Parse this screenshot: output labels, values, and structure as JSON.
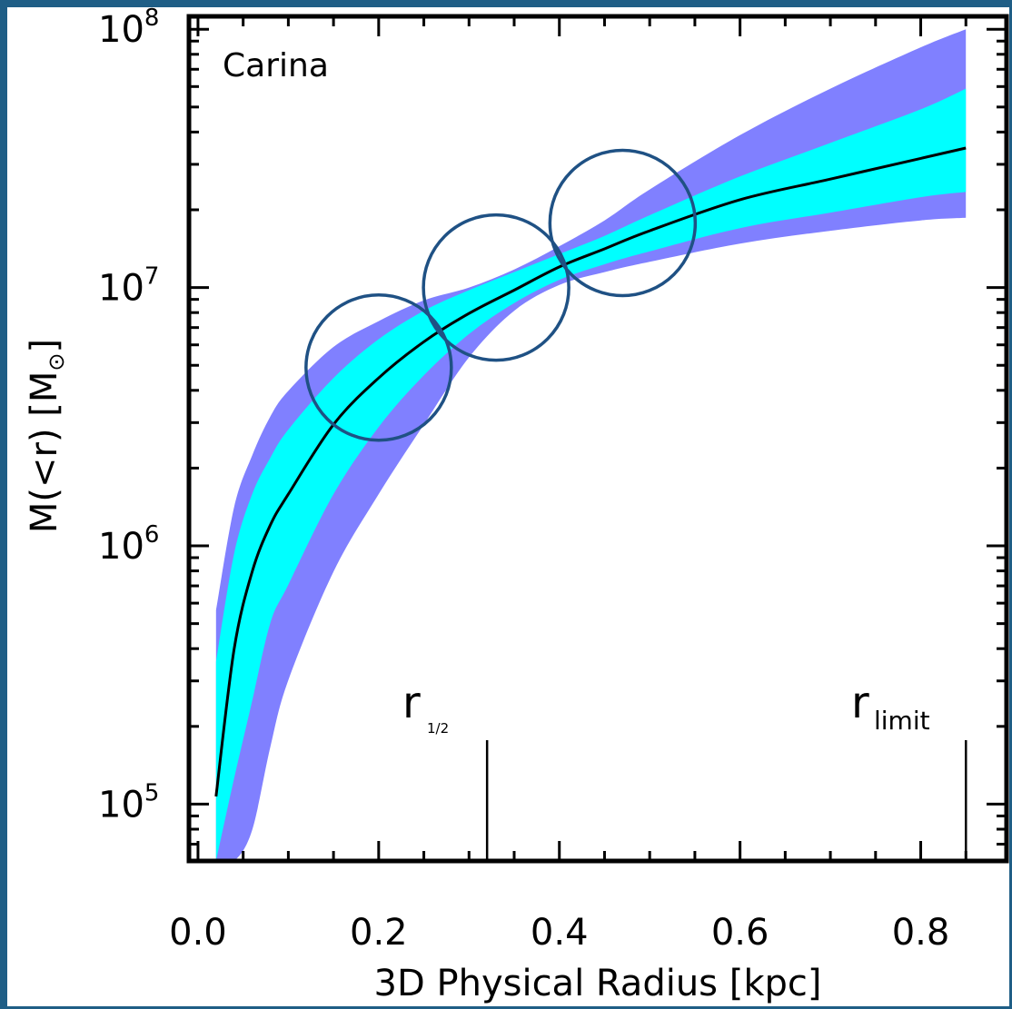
{
  "chart_data": {
    "type": "area",
    "title": "",
    "annotation": "Carina",
    "xlabel": "3D Physical Radius [kpc]",
    "ylabel": "M(<r) [M",
    "ylabel_symbol": "⊙",
    "ylabel_close": "]",
    "xlim": [
      -0.01,
      0.895
    ],
    "ylim_log10": [
      4.78,
      8.05
    ],
    "yscale": "log",
    "x_ticks": [
      "0.0",
      "0.2",
      "0.4",
      "0.6",
      "0.8"
    ],
    "x_tick_values": [
      0.0,
      0.2,
      0.4,
      0.6,
      0.8
    ],
    "y_tick_values_log10": [
      5,
      6,
      7,
      8
    ],
    "y_tick_base": "10",
    "y_tick_exponents": [
      "5",
      "6",
      "7",
      "8"
    ],
    "grid": false,
    "colors": {
      "outer_band": "#8080ff",
      "inner_band": "#00ffff",
      "median": "#000000",
      "circles": "#1f5184",
      "frame": "#1f5e86"
    },
    "x": [
      0.02,
      0.04,
      0.06,
      0.08,
      0.1,
      0.15,
      0.2,
      0.25,
      0.3,
      0.35,
      0.4,
      0.45,
      0.5,
      0.6,
      0.7,
      0.8,
      0.85
    ],
    "series": [
      {
        "role": "outer_upper",
        "log10_values": [
          5.75,
          6.15,
          6.35,
          6.5,
          6.6,
          6.77,
          6.87,
          6.95,
          7.0,
          7.07,
          7.16,
          7.26,
          7.38,
          7.59,
          7.77,
          7.93,
          8.0
        ]
      },
      {
        "role": "inner_upper",
        "log10_values": [
          5.55,
          5.97,
          6.2,
          6.34,
          6.45,
          6.65,
          6.8,
          6.91,
          6.99,
          7.06,
          7.13,
          7.2,
          7.28,
          7.43,
          7.56,
          7.69,
          7.77
        ]
      },
      {
        "role": "median",
        "log10_values": [
          5.03,
          5.6,
          5.9,
          6.08,
          6.2,
          6.47,
          6.65,
          6.79,
          6.9,
          6.99,
          7.08,
          7.15,
          7.22,
          7.34,
          7.42,
          7.5,
          7.54
        ]
      },
      {
        "role": "inner_lower",
        "log10_values": [
          4.78,
          5.1,
          5.4,
          5.7,
          5.85,
          6.2,
          6.46,
          6.66,
          6.82,
          6.94,
          7.03,
          7.09,
          7.14,
          7.23,
          7.29,
          7.35,
          7.37
        ]
      },
      {
        "role": "outer_lower",
        "log10_values": [
          4.78,
          4.78,
          4.9,
          5.22,
          5.48,
          5.9,
          6.2,
          6.47,
          6.73,
          6.91,
          7.01,
          7.06,
          7.1,
          7.17,
          7.22,
          7.26,
          7.27
        ]
      }
    ],
    "markers": [
      {
        "label": "r",
        "subscript": "1/2",
        "x": 0.32
      },
      {
        "label": "r",
        "subscript": "limit",
        "x": 0.85
      }
    ],
    "highlight_circles": [
      {
        "x": 0.2,
        "log10_y": 6.69
      },
      {
        "x": 0.33,
        "log10_y": 7.0
      },
      {
        "x": 0.47,
        "log10_y": 7.25
      }
    ]
  }
}
